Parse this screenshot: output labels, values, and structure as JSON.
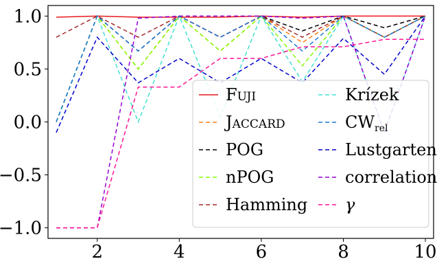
{
  "chart_data": {
    "type": "line",
    "x": [
      1,
      2,
      3,
      4,
      5,
      6,
      7,
      8,
      9,
      10
    ],
    "xlim": [
      0.8,
      10.2
    ],
    "ylim": [
      -1.1,
      1.1
    ],
    "xticks": [
      2,
      4,
      6,
      8,
      10
    ],
    "yticks": [
      1.0,
      0.5,
      0.0,
      -0.5,
      -1.0
    ],
    "xtick_labels": [
      "2",
      "4",
      "6",
      "8",
      "10"
    ],
    "ytick_labels": [
      "1.0",
      "0.5",
      "0.0",
      "−0.5",
      "−1.0"
    ],
    "grid": false,
    "legend_position": "lower-right, two columns",
    "series": [
      {
        "name": "Fuji",
        "color": "#e8191e",
        "dashed": false,
        "smallcaps": true,
        "values": [
          0.99,
          1.0,
          0.99,
          0.99,
          0.99,
          1.0,
          0.99,
          1.0,
          1.0,
          1.0
        ]
      },
      {
        "name": "Jaccard",
        "color": "#ff7f0e",
        "dashed": true,
        "smallcaps": true,
        "values": [
          0.0,
          1.0,
          0.5,
          1.0,
          0.67,
          1.0,
          0.75,
          1.0,
          0.8,
          1.0
        ]
      },
      {
        "name": "POG",
        "color": "#000000",
        "dashed": true,
        "values": [
          0.0,
          1.0,
          0.67,
          1.0,
          0.8,
          1.0,
          0.86,
          1.0,
          0.89,
          1.0
        ]
      },
      {
        "name": "nPOG",
        "color": "#7fff00",
        "dashed": true,
        "values": [
          0.0,
          1.0,
          0.5,
          1.0,
          0.67,
          1.0,
          0.53,
          1.0,
          0.8,
          1.0
        ]
      },
      {
        "name": "Hamming",
        "color": "#a52a2a",
        "dashed": true,
        "values": [
          0.8,
          1.0,
          0.8,
          1.0,
          0.8,
          1.0,
          0.8,
          1.0,
          0.8,
          1.0
        ]
      },
      {
        "name": "Krízek",
        "color": "#40e0d0",
        "dashed": true,
        "values": [
          0.0,
          1.0,
          0.0,
          1.0,
          0.05,
          1.0,
          0.38,
          1.0,
          -0.1,
          1.0
        ]
      },
      {
        "name": "CW",
        "name_sub": "rel",
        "color": "#1f77d4",
        "dashed": true,
        "values": [
          0.0,
          1.0,
          0.67,
          1.0,
          0.8,
          1.0,
          0.67,
          1.0,
          0.8,
          1.0
        ]
      },
      {
        "name": "Lustgarten",
        "color": "#0000cd",
        "dashed": true,
        "values": [
          -0.1,
          0.8,
          0.37,
          0.6,
          0.37,
          0.6,
          0.37,
          0.79,
          0.45,
          1.0
        ]
      },
      {
        "name": "correlation",
        "color": "#9400d3",
        "dashed": true,
        "values": [
          -1.0,
          -1.0,
          0.98,
          1.0,
          1.0,
          1.0,
          0.98,
          1.0,
          -0.1,
          1.0
        ]
      },
      {
        "name": "γ",
        "color": "#ff1493",
        "dashed": true,
        "italic": true,
        "values": [
          -1.0,
          -1.0,
          0.33,
          0.33,
          0.6,
          0.6,
          0.71,
          0.71,
          0.78,
          0.78
        ]
      }
    ]
  }
}
